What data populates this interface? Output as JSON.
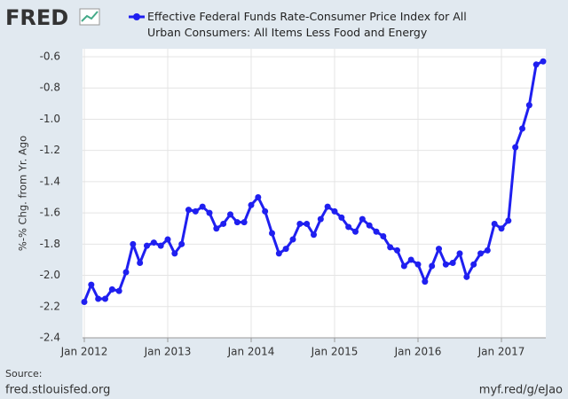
{
  "logo": "FRED",
  "chart_data": {
    "type": "line",
    "ylabel": "%-% Chg. from Yr. Ago",
    "source_label": "Source:",
    "source": "fred.stlouisfed.org",
    "short_url": "myf.red/g/eJao",
    "x": [
      "2012-01",
      "2012-02",
      "2012-03",
      "2012-04",
      "2012-05",
      "2012-06",
      "2012-07",
      "2012-08",
      "2012-09",
      "2012-10",
      "2012-11",
      "2012-12",
      "2013-01",
      "2013-02",
      "2013-03",
      "2013-04",
      "2013-05",
      "2013-06",
      "2013-07",
      "2013-08",
      "2013-09",
      "2013-10",
      "2013-11",
      "2013-12",
      "2014-01",
      "2014-02",
      "2014-03",
      "2014-04",
      "2014-05",
      "2014-06",
      "2014-07",
      "2014-08",
      "2014-09",
      "2014-10",
      "2014-11",
      "2014-12",
      "2015-01",
      "2015-02",
      "2015-03",
      "2015-04",
      "2015-05",
      "2015-06",
      "2015-07",
      "2015-08",
      "2015-09",
      "2015-10",
      "2015-11",
      "2015-12",
      "2016-01",
      "2016-02",
      "2016-03",
      "2016-04",
      "2016-05",
      "2016-06",
      "2016-07",
      "2016-08",
      "2016-09",
      "2016-10",
      "2016-11",
      "2016-12",
      "2017-01",
      "2017-02",
      "2017-03",
      "2017-04",
      "2017-05",
      "2017-06",
      "2017-07"
    ],
    "series": [
      {
        "name": "Effective Federal Funds Rate-Consumer Price Index for All Urban Consumers: All Items Less Food and Energy",
        "color": "#1f1ff0",
        "values": [
          -2.17,
          -2.06,
          -2.15,
          -2.15,
          -2.09,
          -2.1,
          -1.98,
          -1.8,
          -1.92,
          -1.81,
          -1.79,
          -1.81,
          -1.77,
          -1.86,
          -1.8,
          -1.58,
          -1.59,
          -1.56,
          -1.6,
          -1.7,
          -1.67,
          -1.61,
          -1.66,
          -1.66,
          -1.55,
          -1.5,
          -1.59,
          -1.73,
          -1.86,
          -1.83,
          -1.77,
          -1.67,
          -1.67,
          -1.74,
          -1.64,
          -1.56,
          -1.59,
          -1.63,
          -1.69,
          -1.72,
          -1.64,
          -1.68,
          -1.72,
          -1.75,
          -1.82,
          -1.84,
          -1.94,
          -1.9,
          -1.93,
          -2.04,
          -1.94,
          -1.83,
          -1.93,
          -1.92,
          -1.86,
          -2.01,
          -1.93,
          -1.86,
          -1.84,
          -1.67,
          -1.7,
          -1.65,
          -1.18,
          -1.06,
          -0.91,
          -0.65,
          -0.63
        ]
      }
    ],
    "xticks": [
      {
        "value": "2012-01",
        "label": "Jan 2012"
      },
      {
        "value": "2013-01",
        "label": "Jan 2013"
      },
      {
        "value": "2014-01",
        "label": "Jan 2014"
      },
      {
        "value": "2015-01",
        "label": "Jan 2015"
      },
      {
        "value": "2016-01",
        "label": "Jan 2016"
      },
      {
        "value": "2017-01",
        "label": "Jan 2017"
      }
    ],
    "ylim": [
      -2.4,
      -0.6
    ],
    "yticks": [
      -0.6,
      -0.8,
      {
        "value": -1.0,
        "label": "-1.0"
      },
      -1.2,
      -1.4,
      -1.6,
      -1.8,
      {
        "value": -2.0,
        "label": "-2.0"
      },
      -2.2,
      -2.4
    ],
    "grid": true
  }
}
